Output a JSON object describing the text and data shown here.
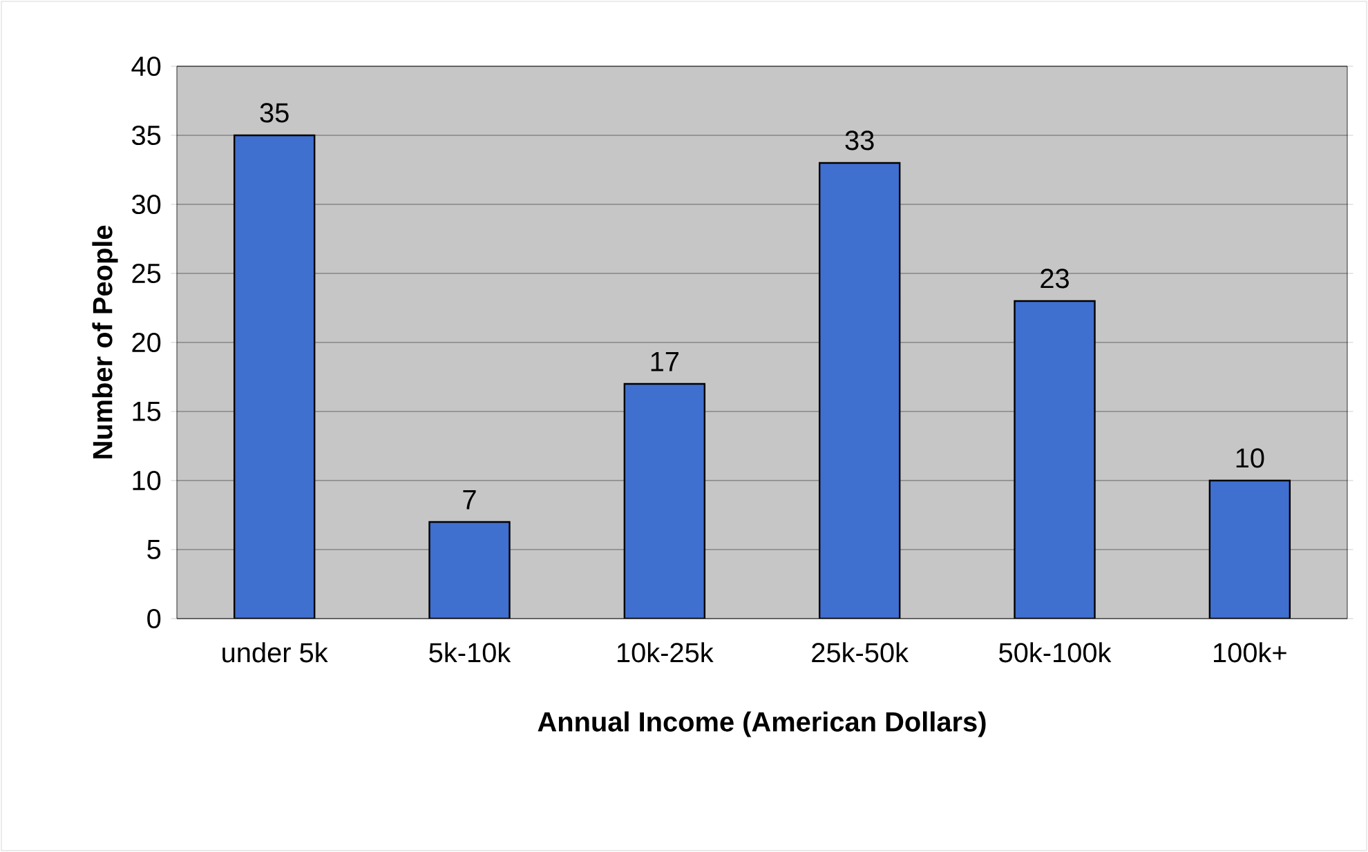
{
  "chart_data": {
    "type": "bar",
    "xlabel": "Annual Income (American Dollars)",
    "ylabel": "Number of People",
    "categories": [
      "under 5k",
      "5k-10k",
      "10k-25k",
      "25k-50k",
      "50k-100k",
      "100k+"
    ],
    "values": [
      35,
      7,
      17,
      33,
      23,
      10
    ],
    "color": "#3f6fcf",
    "ylim": [
      0,
      40
    ],
    "yticks": [
      0,
      5,
      10,
      15,
      20,
      25,
      30,
      35,
      40
    ],
    "grid": "y",
    "data_labels": true
  }
}
